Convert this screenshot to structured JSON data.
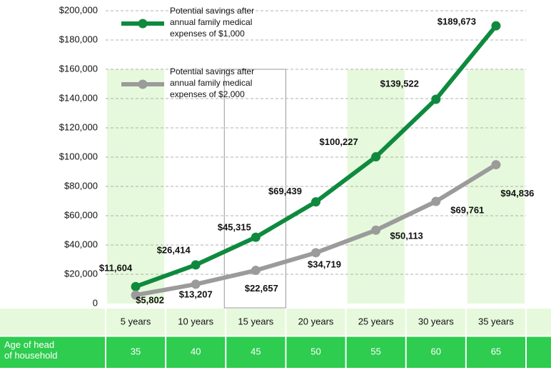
{
  "chart_data": {
    "type": "line",
    "categories": [
      "5 years",
      "10 years",
      "15 years",
      "20 years",
      "25 years",
      "30 years",
      "35 years"
    ],
    "series": [
      {
        "name": "Potential savings after annual family medical expenses of $1,000",
        "color": "#0e8a3e",
        "values": [
          11604,
          26414,
          45315,
          69439,
          100227,
          139522,
          189673
        ],
        "value_labels": [
          "$11,604",
          "$26,414",
          "$45,315",
          "$69,439",
          "$100,227",
          "$139,522",
          "$189,673"
        ]
      },
      {
        "name": "Potential savings after annual family medical expenses of $2,000",
        "color": "#9b9b9b",
        "values": [
          5802,
          13207,
          22657,
          34719,
          50113,
          69761,
          94836
        ],
        "value_labels": [
          "$5,802",
          "$13,207",
          "$22,657",
          "$34,719",
          "$50,113",
          "$69,761",
          "$94,836"
        ]
      }
    ],
    "ylim": [
      0,
      200000
    ],
    "yticks": [
      0,
      {
        "value": 20000,
        "label": "$20,000"
      },
      {
        "value": 40000,
        "label": "$40,000"
      },
      {
        "value": 60000,
        "label": "$60,000"
      },
      {
        "value": 80000,
        "label": "$80,000"
      },
      {
        "value": 100000,
        "label": "$100,000"
      },
      {
        "value": 120000,
        "label": "$120,000"
      },
      {
        "value": 140000,
        "label": "$140,000"
      },
      {
        "value": 160000,
        "label": "$160,000"
      },
      {
        "value": 180000,
        "label": "$180,000"
      },
      {
        "value": 200000,
        "label": "$200,000"
      }
    ],
    "grid": true,
    "table": {
      "row_label": "Age of head of household",
      "values": [
        35,
        40,
        45,
        50,
        55,
        60,
        65
      ]
    }
  }
}
